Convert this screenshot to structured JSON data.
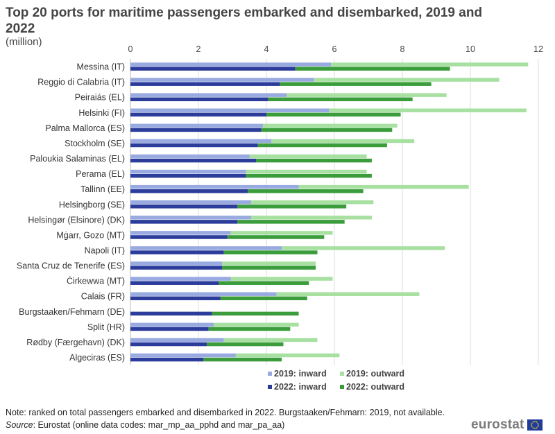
{
  "title": "Top 20 ports for maritime passengers embarked and disembarked, 2019 and 2022",
  "subtitle": "(million)",
  "note": "Note: ranked on total passengers embarked and disembarked in 2022. Burgstaaken/Fehmarn:  2019, not available.",
  "source_label": "Source",
  "source_text": ": Eurostat (online data codes: mar_mp_aa_pphd and mar_pa_aa)",
  "logo_text": "eurostat",
  "chart_data": {
    "type": "bar",
    "orientation": "horizontal",
    "stacked": true,
    "xlim": [
      0,
      12
    ],
    "xticks": [
      0,
      2,
      4,
      6,
      8,
      10,
      12
    ],
    "grid": true,
    "legend_position": "bottom",
    "categories": [
      "Messina (IT)",
      "Reggio di Calabria (IT)",
      "Peiraiás (EL)",
      "Helsinki (FI)",
      "Palma Mallorca (ES)",
      "Stockholm (SE)",
      "Paloukia Salaminas (EL)",
      "Perama (EL)",
      "Tallinn (EE)",
      "Helsingborg (SE)",
      "Helsingør (Elsinore) (DK)",
      "Mġarr, Gozo (MT)",
      "Napoli (IT)",
      "Santa Cruz de Tenerife (ES)",
      "Ċirkewwa (MT)",
      "Calais (FR)",
      "Burgstaaken/Fehmarn (DE)",
      "Split (HR)",
      "Rødby (Færgehavn) (DK)",
      "Algeciras (ES)"
    ],
    "series": [
      {
        "name": "2019: inward",
        "year": "2019",
        "stack": "inward",
        "color": "#99aae0",
        "values": [
          5.9,
          5.4,
          4.6,
          5.85,
          3.9,
          4.15,
          3.5,
          3.4,
          4.95,
          3.55,
          3.55,
          2.95,
          4.45,
          2.7,
          2.95,
          4.3,
          null,
          2.45,
          2.75,
          3.1
        ]
      },
      {
        "name": "2019: outward",
        "year": "2019",
        "stack": "outward",
        "color": "#a8e0a2",
        "values": [
          5.8,
          5.45,
          4.7,
          5.8,
          3.95,
          4.2,
          3.45,
          3.55,
          5.0,
          3.6,
          3.55,
          3.0,
          4.8,
          2.75,
          3.0,
          4.2,
          null,
          2.5,
          2.75,
          3.05
        ]
      },
      {
        "name": "2022: inward",
        "year": "2022",
        "stack": "inward",
        "color": "#2b3c9b",
        "values": [
          4.85,
          4.4,
          4.05,
          4.0,
          3.85,
          3.75,
          3.7,
          3.4,
          3.45,
          3.15,
          3.15,
          2.85,
          2.75,
          2.7,
          2.6,
          2.65,
          2.4,
          2.3,
          2.25,
          2.15
        ]
      },
      {
        "name": "2022: outward",
        "year": "2022",
        "stack": "outward",
        "color": "#3a9c3b",
        "values": [
          4.55,
          4.45,
          4.25,
          3.95,
          3.85,
          3.8,
          3.4,
          3.7,
          3.4,
          3.2,
          3.15,
          2.85,
          2.75,
          2.75,
          2.65,
          2.55,
          2.55,
          2.4,
          2.25,
          2.3
        ]
      }
    ]
  }
}
